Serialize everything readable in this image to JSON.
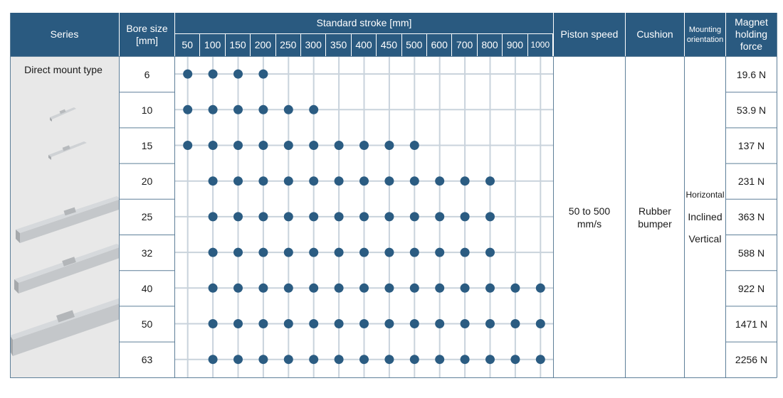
{
  "headers": {
    "series": "Series",
    "bore_size": "Bore size\n[mm]",
    "standard_stroke": "Standard stroke [mm]",
    "piston_speed": "Piston speed",
    "cushion": "Cushion",
    "mounting_orientation": "Mounting\norientation",
    "magnet_holding_force": "Magnet\nholding\nforce"
  },
  "strokes": [
    "50",
    "100",
    "150",
    "200",
    "250",
    "300",
    "350",
    "400",
    "450",
    "500",
    "600",
    "700",
    "800",
    "900",
    "1000"
  ],
  "series_name": "Direct mount type",
  "rows": [
    {
      "bore": "6",
      "force": "19.6 N",
      "strokes": [
        "50",
        "100",
        "150",
        "200"
      ]
    },
    {
      "bore": "10",
      "force": "53.9 N",
      "strokes": [
        "50",
        "100",
        "150",
        "200",
        "250",
        "300"
      ]
    },
    {
      "bore": "15",
      "force": "137 N",
      "strokes": [
        "50",
        "100",
        "150",
        "200",
        "250",
        "300",
        "350",
        "400",
        "450",
        "500"
      ]
    },
    {
      "bore": "20",
      "force": "231 N",
      "strokes": [
        "100",
        "150",
        "200",
        "250",
        "300",
        "350",
        "400",
        "450",
        "500",
        "600",
        "700",
        "800"
      ]
    },
    {
      "bore": "25",
      "force": "363 N",
      "strokes": [
        "100",
        "150",
        "200",
        "250",
        "300",
        "350",
        "400",
        "450",
        "500",
        "600",
        "700",
        "800"
      ]
    },
    {
      "bore": "32",
      "force": "588 N",
      "strokes": [
        "100",
        "150",
        "200",
        "250",
        "300",
        "350",
        "400",
        "450",
        "500",
        "600",
        "700",
        "800"
      ]
    },
    {
      "bore": "40",
      "force": "922 N",
      "strokes": [
        "100",
        "150",
        "200",
        "250",
        "300",
        "350",
        "400",
        "450",
        "500",
        "600",
        "700",
        "800",
        "900",
        "1000"
      ]
    },
    {
      "bore": "50",
      "force": "1471 N",
      "strokes": [
        "100",
        "150",
        "200",
        "250",
        "300",
        "350",
        "400",
        "450",
        "500",
        "600",
        "700",
        "800",
        "900",
        "1000"
      ]
    },
    {
      "bore": "63",
      "force": "2256 N",
      "strokes": [
        "100",
        "150",
        "200",
        "250",
        "300",
        "350",
        "400",
        "450",
        "500",
        "600",
        "700",
        "800",
        "900",
        "1000"
      ]
    }
  ],
  "piston_speed": "50 to 500\nmm/s",
  "cushion": "Rubber\nbumper",
  "mounting": [
    "Horizontal",
    "Inclined",
    "Vertical"
  ],
  "colors": {
    "header_bg": "#2a5a80",
    "dot": "#2b5c82",
    "grid_line": "#c9d3dc",
    "series_bg": "#e8e8e8"
  }
}
